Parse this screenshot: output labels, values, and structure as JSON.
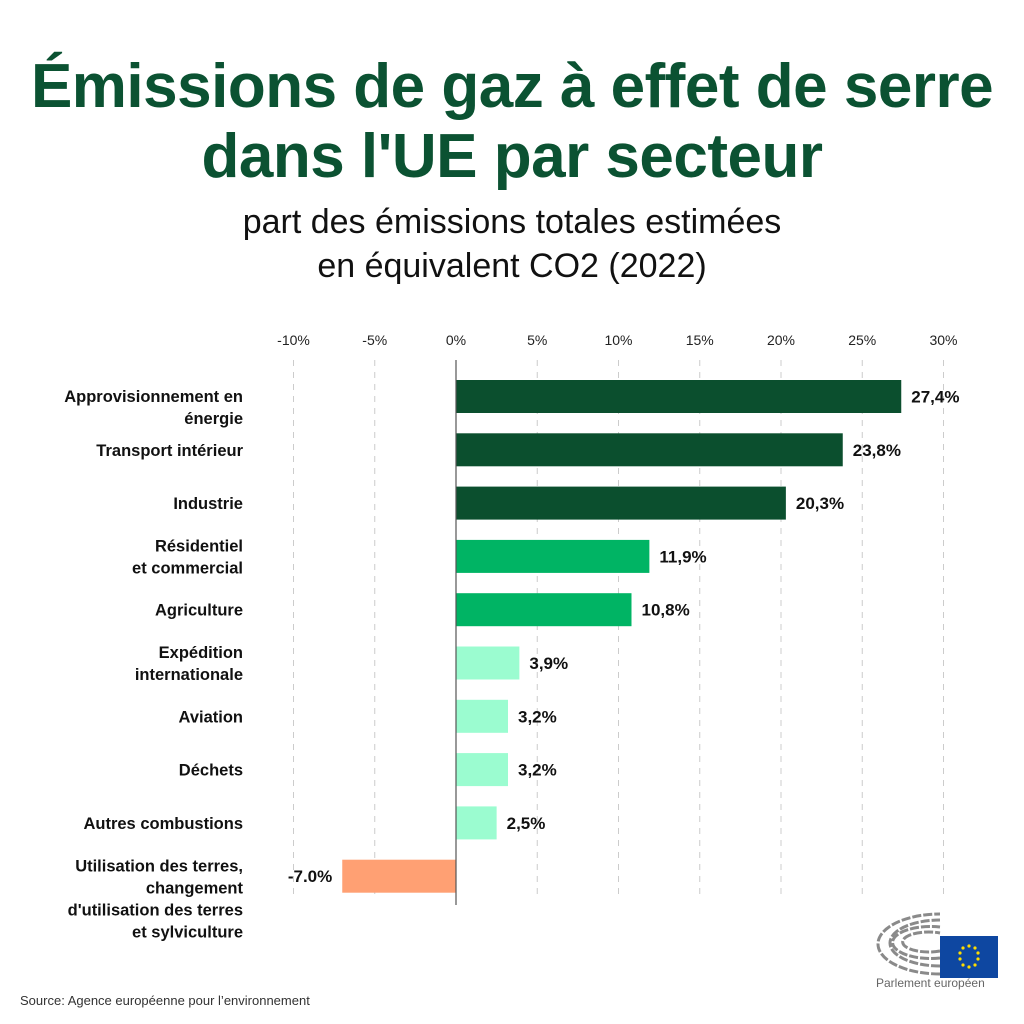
{
  "header": {
    "title_line1": "Émissions de gaz à effet de serre",
    "title_line2": "dans l'UE par secteur",
    "subtitle_line1": "part des émissions totales estimées",
    "subtitle_line2": "en équivalent CO2 (2022)"
  },
  "footer": {
    "source": "Source: Agence européenne pour l’environnement",
    "logo_text": "Parlement européen"
  },
  "chart_data": {
    "type": "bar",
    "orientation": "horizontal",
    "title": "Émissions de gaz à effet de serre dans l'UE par secteur",
    "subtitle": "part des émissions totales estimées en équivalent CO2 (2022)",
    "xlabel": "",
    "ylabel": "",
    "xlim": [
      -10,
      30
    ],
    "x_ticks": [
      -10,
      -5,
      0,
      5,
      10,
      15,
      20,
      25,
      30
    ],
    "x_tick_labels": [
      "-10%",
      "-5%",
      "0%",
      "5%",
      "10%",
      "15%",
      "20%",
      "25%",
      "30%"
    ],
    "grid": true,
    "categories": [
      [
        "Approvisionnement en",
        "énergie"
      ],
      [
        "Transport intérieur"
      ],
      [
        "Industrie"
      ],
      [
        "Résidentiel",
        "et commercial"
      ],
      [
        "Agriculture"
      ],
      [
        "Expédition",
        "internationale"
      ],
      [
        "Aviation"
      ],
      [
        "Déchets"
      ],
      [
        "Autres combustions"
      ],
      [
        "Utilisation des terres,",
        "changement",
        "d'utilisation des terres",
        "et sylviculture"
      ]
    ],
    "values": [
      27.4,
      23.8,
      20.3,
      11.9,
      10.8,
      3.9,
      3.2,
      3.2,
      2.5,
      -7.0
    ],
    "data_labels": [
      "27,4%",
      "23,8%",
      "20,3%",
      "11,9%",
      "10,8%",
      "3,9%",
      "3,2%",
      "3,2%",
      "2,5%",
      "-7.0%"
    ],
    "colors": [
      "#0b4f2e",
      "#0b4f2e",
      "#0b4f2e",
      "#00b464",
      "#00b464",
      "#9bfcd0",
      "#9bfcd0",
      "#9bfcd0",
      "#9bfcd0",
      "#ffa073"
    ]
  }
}
